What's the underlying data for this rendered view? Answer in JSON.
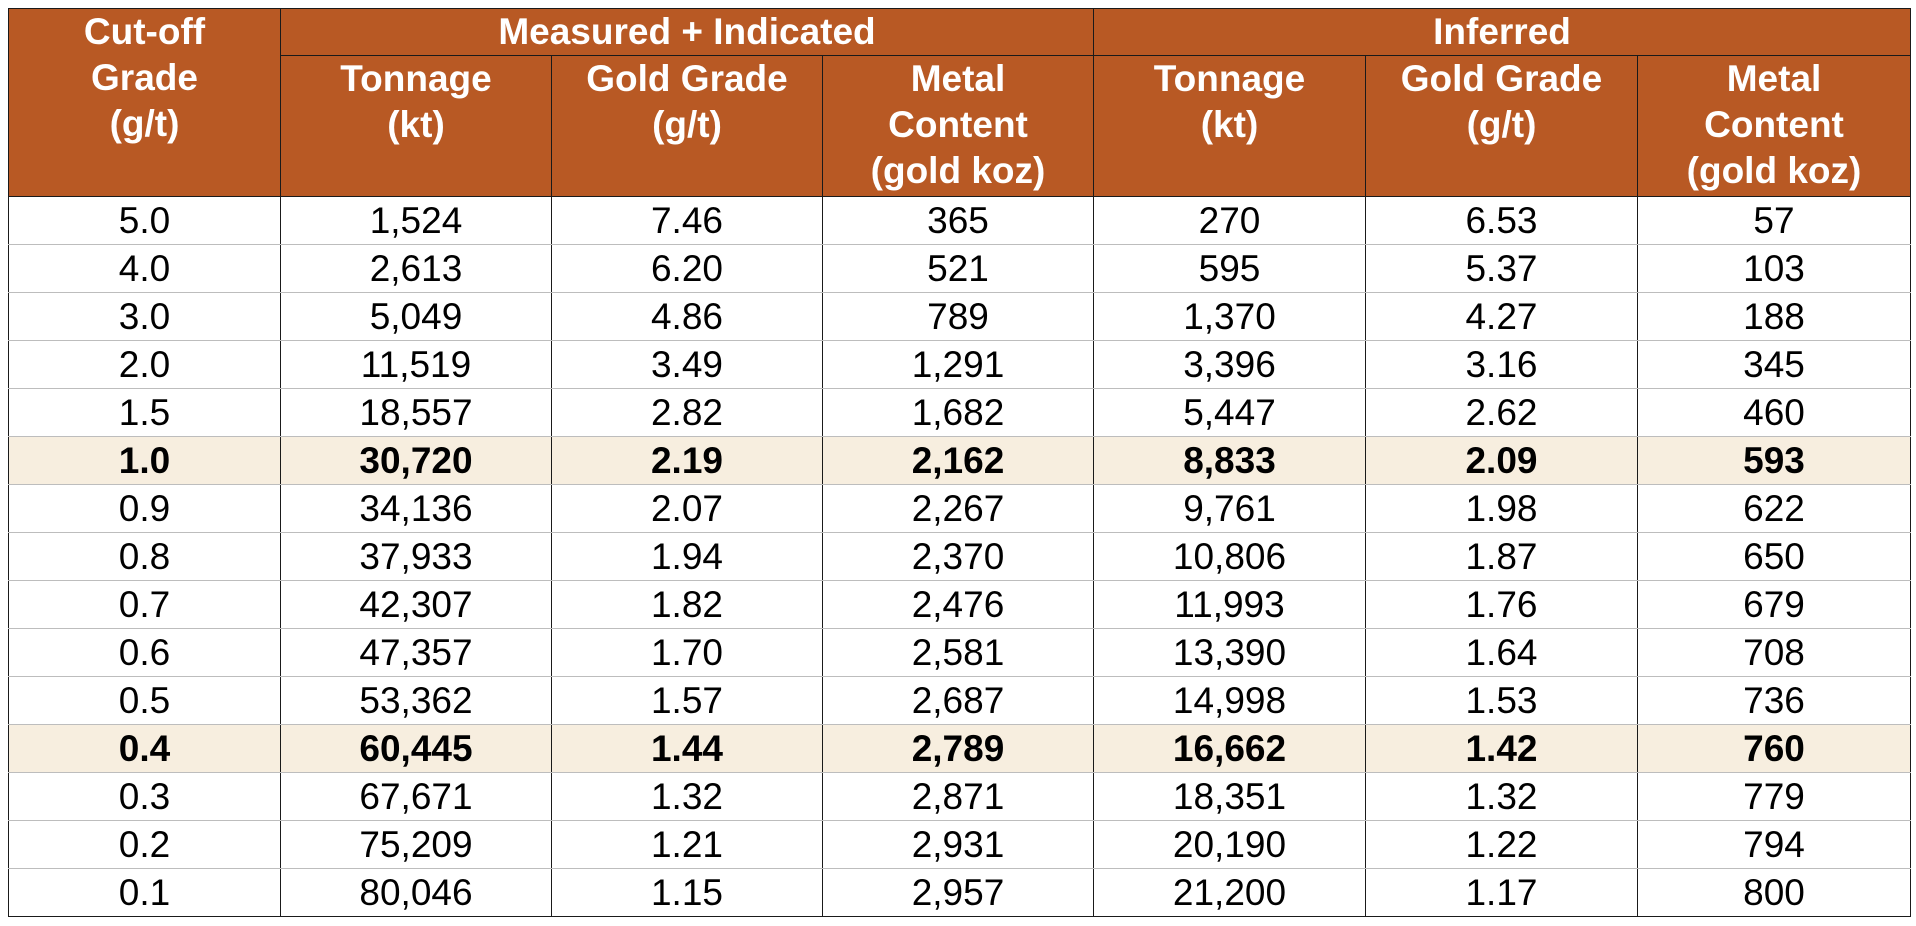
{
  "header": {
    "cutoff": [
      "Cut-off",
      "Grade",
      "(g/t)"
    ],
    "group_measured": "Measured + Indicated",
    "group_inferred": "Inferred",
    "tonnage": [
      "Tonnage",
      "(kt)"
    ],
    "gold_grade": [
      "Gold Grade",
      "(g/t)"
    ],
    "metal_content": [
      "Metal",
      "Content",
      "(gold koz)"
    ]
  },
  "colors": {
    "header_bg": "#b85924",
    "highlight_bg": "#f7eedf"
  },
  "rows": [
    {
      "cutoff": "5.0",
      "mi_tonnage": "1,524",
      "mi_grade": "7.46",
      "mi_metal": "365",
      "inf_tonnage": "270",
      "inf_grade": "6.53",
      "inf_metal": "57",
      "highlight": false
    },
    {
      "cutoff": "4.0",
      "mi_tonnage": "2,613",
      "mi_grade": "6.20",
      "mi_metal": "521",
      "inf_tonnage": "595",
      "inf_grade": "5.37",
      "inf_metal": "103",
      "highlight": false
    },
    {
      "cutoff": "3.0",
      "mi_tonnage": "5,049",
      "mi_grade": "4.86",
      "mi_metal": "789",
      "inf_tonnage": "1,370",
      "inf_grade": "4.27",
      "inf_metal": "188",
      "highlight": false
    },
    {
      "cutoff": "2.0",
      "mi_tonnage": "11,519",
      "mi_grade": "3.49",
      "mi_metal": "1,291",
      "inf_tonnage": "3,396",
      "inf_grade": "3.16",
      "inf_metal": "345",
      "highlight": false
    },
    {
      "cutoff": "1.5",
      "mi_tonnage": "18,557",
      "mi_grade": "2.82",
      "mi_metal": "1,682",
      "inf_tonnage": "5,447",
      "inf_grade": "2.62",
      "inf_metal": "460",
      "highlight": false
    },
    {
      "cutoff": "1.0",
      "mi_tonnage": "30,720",
      "mi_grade": "2.19",
      "mi_metal": "2,162",
      "inf_tonnage": "8,833",
      "inf_grade": "2.09",
      "inf_metal": "593",
      "highlight": true
    },
    {
      "cutoff": "0.9",
      "mi_tonnage": "34,136",
      "mi_grade": "2.07",
      "mi_metal": "2,267",
      "inf_tonnage": "9,761",
      "inf_grade": "1.98",
      "inf_metal": "622",
      "highlight": false
    },
    {
      "cutoff": "0.8",
      "mi_tonnage": "37,933",
      "mi_grade": "1.94",
      "mi_metal": "2,370",
      "inf_tonnage": "10,806",
      "inf_grade": "1.87",
      "inf_metal": "650",
      "highlight": false
    },
    {
      "cutoff": "0.7",
      "mi_tonnage": "42,307",
      "mi_grade": "1.82",
      "mi_metal": "2,476",
      "inf_tonnage": "11,993",
      "inf_grade": "1.76",
      "inf_metal": "679",
      "highlight": false
    },
    {
      "cutoff": "0.6",
      "mi_tonnage": "47,357",
      "mi_grade": "1.70",
      "mi_metal": "2,581",
      "inf_tonnage": "13,390",
      "inf_grade": "1.64",
      "inf_metal": "708",
      "highlight": false
    },
    {
      "cutoff": "0.5",
      "mi_tonnage": "53,362",
      "mi_grade": "1.57",
      "mi_metal": "2,687",
      "inf_tonnage": "14,998",
      "inf_grade": "1.53",
      "inf_metal": "736",
      "highlight": false
    },
    {
      "cutoff": "0.4",
      "mi_tonnage": "60,445",
      "mi_grade": "1.44",
      "mi_metal": "2,789",
      "inf_tonnage": "16,662",
      "inf_grade": "1.42",
      "inf_metal": "760",
      "highlight": true
    },
    {
      "cutoff": "0.3",
      "mi_tonnage": "67,671",
      "mi_grade": "1.32",
      "mi_metal": "2,871",
      "inf_tonnage": "18,351",
      "inf_grade": "1.32",
      "inf_metal": "779",
      "highlight": false
    },
    {
      "cutoff": "0.2",
      "mi_tonnage": "75,209",
      "mi_grade": "1.21",
      "mi_metal": "2,931",
      "inf_tonnage": "20,190",
      "inf_grade": "1.22",
      "inf_metal": "794",
      "highlight": false
    },
    {
      "cutoff": "0.1",
      "mi_tonnage": "80,046",
      "mi_grade": "1.15",
      "mi_metal": "2,957",
      "inf_tonnage": "21,200",
      "inf_grade": "1.17",
      "inf_metal": "800",
      "highlight": false
    }
  ]
}
